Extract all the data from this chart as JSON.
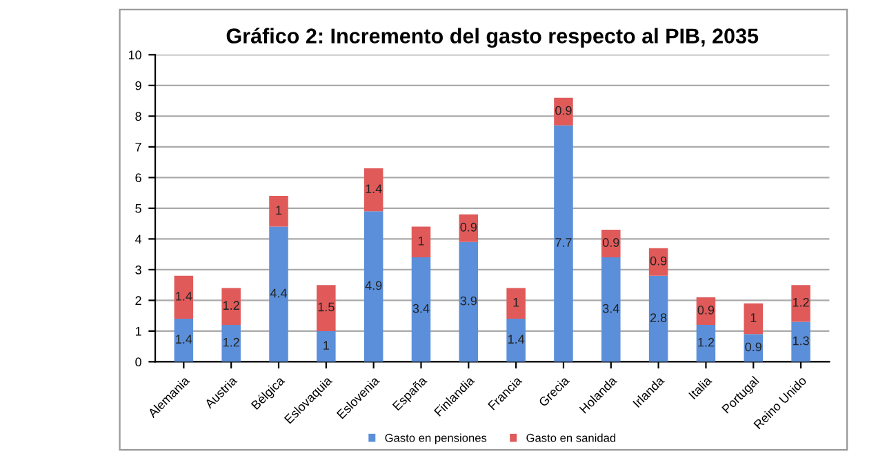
{
  "chart_data": {
    "type": "bar",
    "title": "Gráfico 2: Incremento del gasto respecto al PIB, 2035",
    "categories": [
      "Alemania",
      "Austria",
      "Bélgica",
      "Eslovaquia",
      "Eslovenia",
      "España",
      "Finlandia",
      "Francia",
      "Grecia",
      "Holanda",
      "Irlanda",
      "Italia",
      "Portugal",
      "Reino Unido"
    ],
    "series": [
      {
        "name": "Gasto en pensiones",
        "color": "#5b8fd9",
        "values": [
          1.4,
          1.2,
          4.4,
          1,
          4.9,
          3.4,
          3.9,
          1.4,
          7.7,
          3.4,
          2.8,
          1.2,
          0.9,
          1.3
        ]
      },
      {
        "name": "Gasto en sanidad",
        "color": "#e05a5a",
        "values": [
          1.4,
          1.2,
          1,
          1.5,
          1.4,
          1,
          0.9,
          1,
          0.9,
          0.9,
          0.9,
          0.9,
          1,
          1.2
        ]
      }
    ],
    "stacked": true,
    "data_labels": true,
    "ylim": [
      0,
      10
    ],
    "yticks": [
      0,
      1,
      2,
      3,
      4,
      5,
      6,
      7,
      8,
      9,
      10
    ],
    "grid": "y",
    "legend": "bottom"
  }
}
